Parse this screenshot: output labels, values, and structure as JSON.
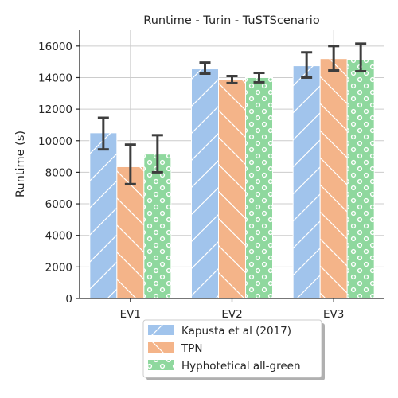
{
  "chart_data": {
    "type": "bar",
    "title": "Runtime  - Turin - TuSTScenario",
    "xlabel": "",
    "ylabel": "Runtime (s)",
    "ylim": [
      0,
      17000
    ],
    "yticks": [
      0,
      2000,
      4000,
      6000,
      8000,
      10000,
      12000,
      14000,
      16000
    ],
    "ytick_labels": [
      "0",
      "2000",
      "4000",
      "6000",
      "8000",
      "10000",
      "12000",
      "14000",
      "16000"
    ],
    "grid": true,
    "legend_position": "bottom-center",
    "categories": [
      "EV1",
      "EV2",
      "EV3"
    ],
    "series": [
      {
        "name": "Kapusta et al (2017)",
        "color": "#a1c4ec",
        "hatch": "diagonal",
        "values": [
          10500,
          14550,
          14750
        ],
        "err_low": [
          9450,
          14250,
          14000
        ],
        "err_high": [
          11450,
          14950,
          15600
        ]
      },
      {
        "name": "TPN",
        "color": "#f4b489",
        "hatch": "backslash",
        "values": [
          8350,
          13850,
          15200
        ],
        "err_low": [
          7250,
          13650,
          14450
        ],
        "err_high": [
          9750,
          14100,
          16000
        ]
      },
      {
        "name": "Hyphotetical all-green",
        "color": "#8fd89e",
        "hatch": "circles",
        "values": [
          9150,
          14000,
          15150
        ],
        "err_low": [
          8000,
          13700,
          14400
        ],
        "err_high": [
          10350,
          14300,
          16150
        ]
      }
    ]
  }
}
